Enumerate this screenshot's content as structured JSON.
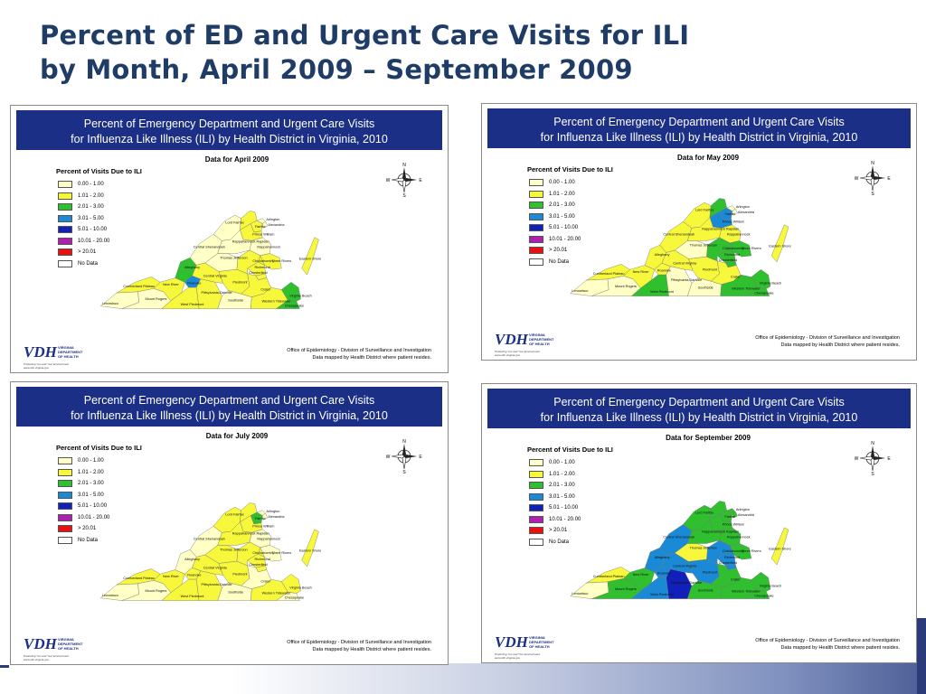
{
  "slide": {
    "title_line1": "Percent of ED and Urgent Care Visits for ILI",
    "title_line2": "by Month, April 2009 – September 2009"
  },
  "legend_levels": [
    {
      "label": "0.00 - 1.00",
      "color": "#ffffc6"
    },
    {
      "label": "1.01 - 2.00",
      "color": "#f7f73c"
    },
    {
      "label": "2.01 - 3.00",
      "color": "#2fbf2f"
    },
    {
      "label": "3.01 - 5.00",
      "color": "#1a8ad6"
    },
    {
      "label": "5.01 - 10.00",
      "color": "#1020b8"
    },
    {
      "label": "10.01 - 20.00",
      "color": "#b020b0"
    },
    {
      "label": "> 20.01",
      "color": "#e81010"
    },
    {
      "label": "No Data",
      "color": "#ffffff"
    }
  ],
  "panels": [
    {
      "header_line1": "Percent of Emergency Department and Urgent Care Visits",
      "header_line2": "for Influenza Like Illness (ILI) by Health District in Virginia, 2010",
      "subtitle": "Data for April 2009",
      "legend_title": "Percent of Visits Due to ILI",
      "compass": {
        "n": "N",
        "s": "S",
        "e": "E",
        "w": "W"
      },
      "credit_line1": "Office of Epidemiology - Division of Surveillance and Investigation",
      "credit_line2": "Data mapped by Health District where patient resides.",
      "logo": {
        "main": "VDH",
        "line1": "VIRGINIA",
        "line2": "DEPARTMENT",
        "line3": "OF HEALTH",
        "tagline": "Protecting You and Your Environment",
        "url": "www.vdh.virginia.gov"
      },
      "districts": {
        "lenowisco": "Lenowisco",
        "cumberland": "Cumberland Plateau",
        "mountrogers": "Mount Rogers",
        "newriver": "New River",
        "alleghany": "Alleghany",
        "roanoke": "Roanoke",
        "westpiedmont": "West Piedmont",
        "pittsylvania": "Pittsylvania-Danville",
        "centralshen": "Central Shenandoah",
        "thomasjeff": "Thomas Jefferson",
        "centralva": "Central Virginia",
        "southside": "Southside",
        "piedmont": "Piedmont",
        "rappahannock": "Rappahannock",
        "rapprapidan": "Rappahannock Rapidan",
        "lordfairfax": "Lord Fairfax",
        "fairfax": "Fairfax",
        "arlington": "Arlington",
        "alexandria": "Alexandria",
        "princewilliam": "Prince William",
        "loudoun": "Loudoun",
        "chesterfield": "Chesterfield",
        "richmond": "Richmond",
        "henrico": "Henrico",
        "chickahominy": "Chickahominy",
        "threerivers": "Three Rivers",
        "crater": "Crater",
        "westtidewater": "Western Tidewater",
        "virginiabeach": "Virginia Beach",
        "chesapeake": "Chesapeake",
        "easternshore": "Eastern Shore"
      },
      "fills": {
        "lenowisco": "#ffffc6",
        "cumberland": "#f7f73c",
        "mountrogers": "#ffffc6",
        "newriver": "#f7f73c",
        "alleghany": "#2fbf2f",
        "roanoke": "#1a8ad6",
        "westpiedmont": "#f7f73c",
        "pittsylvania": "#f7f73c",
        "centralshen": "#ffffc6",
        "thomasjeff": "#ffffc6",
        "centralva": "#f7f73c",
        "southside": "#ffffc6",
        "piedmont": "#f7f73c",
        "rappahannock": "#ffffc6",
        "rapprapidan": "#ffffc6",
        "lordfairfax": "#ffffc6",
        "fairfax": "#f7f73c",
        "arlington": "#ffffc6",
        "loudoun": "#f7f73c",
        "alexandria": "#ffffc6",
        "princewilliam": "#f7f73c",
        "chesterfield": "#f7f73c",
        "richmond": "#f7f73c",
        "henrico": "#f7f73c",
        "chickahominy": "#f7f73c",
        "threerivers": "#f7f73c",
        "crater": "#f7f73c",
        "westtidewater": "#f7f73c",
        "virginiabeach": "#2fbf2f",
        "chesapeake": "#2fbf2f",
        "easternshore": "#f7f73c"
      }
    },
    {
      "header_line1": "Percent of Emergency Department and Urgent Care Visits",
      "header_line2": "for Influenza Like Illness (ILI) by Health District in Virginia, 2010",
      "subtitle": "Data for May 2009",
      "legend_title": "Percent of Visits Due to ILI",
      "compass": {
        "n": "N",
        "s": "S",
        "e": "E",
        "w": "W"
      },
      "credit_line1": "Office of Epidemiology - Division of Surveillance and Investigation",
      "credit_line2": "Data mapped by Health District where patient resides.",
      "logo": {
        "main": "VDH",
        "line1": "VIRGINIA",
        "line2": "DEPARTMENT",
        "line3": "OF HEALTH",
        "tagline": "Protecting You and Your Environment",
        "url": "www.vdh.virginia.gov"
      },
      "districts": {
        "lenowisco": "Lenowisco",
        "cumberland": "Cumberland Plateau",
        "mountrogers": "Mount Rogers",
        "newriver": "New River",
        "alleghany": "Alleghany",
        "roanoke": "Roanoke",
        "westpiedmont": "West Piedmont",
        "pittsylvania": "Pittsylvania-Danville",
        "centralshen": "Central Shenandoah",
        "thomasjeff": "Thomas Jefferson",
        "centralva": "Central Virginia",
        "southside": "Southside",
        "piedmont": "Piedmont",
        "rappahannock": "Rappahannock",
        "rapprapidan": "Rappahannock Rapidan",
        "lordfairfax": "Lord Fairfax",
        "fairfax": "Fairfax",
        "arlington": "Arlington",
        "alexandria": "Alexandria",
        "princewilliam": "Prince William",
        "loudoun": "Loudoun",
        "chesterfield": "Chesterfield",
        "richmond": "Richmond",
        "henrico": "Henrico",
        "chickahominy": "Chickahominy",
        "threerivers": "Three Rivers",
        "crater": "Crater",
        "westtidewater": "Western Tidewater",
        "virginiabeach": "Virginia Beach",
        "chesapeake": "Chesapeake",
        "easternshore": "Eastern Shore"
      },
      "fills": {
        "lenowisco": "#ffffc6",
        "cumberland": "#f7f73c",
        "mountrogers": "#ffffc6",
        "newriver": "#f7f73c",
        "alleghany": "#f7f73c",
        "roanoke": "#f7f73c",
        "westpiedmont": "#2fbf2f",
        "pittsylvania": "#ffffc6",
        "centralshen": "#f7f73c",
        "thomasjeff": "#ffffc6",
        "centralva": "#f7f73c",
        "southside": "#ffffc6",
        "piedmont": "#f7f73c",
        "rappahannock": "#f7f73c",
        "rapprapidan": "#f7f73c",
        "lordfairfax": "#f7f73c",
        "fairfax": "#1a8ad6",
        "arlington": "#ffffc6",
        "loudoun": "#2fbf2f",
        "alexandria": "#ffffc6",
        "princewilliam": "#1a8ad6",
        "chesterfield": "#2fbf2f",
        "richmond": "#2fbf2f",
        "henrico": "#2fbf2f",
        "chickahominy": "#2fbf2f",
        "threerivers": "#2fbf2f",
        "crater": "#f7f73c",
        "westtidewater": "#2fbf2f",
        "virginiabeach": "#2fbf2f",
        "chesapeake": "#2fbf2f",
        "easternshore": "#f7f73c"
      }
    },
    {
      "header_line1": "Percent of Emergency Department and Urgent Care Visits",
      "header_line2": "for Influenza Like Illness (ILI) by Health District in Virginia, 2010",
      "subtitle": "Data for July 2009",
      "legend_title": "Percent of Visits Due to ILI",
      "compass": {
        "n": "N",
        "s": "S",
        "e": "E",
        "w": "W"
      },
      "credit_line1": "Office of Epidemiology - Division of Surveillance and Investigation",
      "credit_line2": "Data mapped by Health District where patient resides.",
      "logo": {
        "main": "VDH",
        "line1": "VIRGINIA",
        "line2": "DEPARTMENT",
        "line3": "OF HEALTH",
        "tagline": "Protecting You and Your Environment",
        "url": "www.vdh.virginia.gov"
      },
      "districts": {
        "lenowisco": "Lenowisco",
        "cumberland": "Cumberland Plateau",
        "mountrogers": "Mount Rogers",
        "newriver": "New River",
        "alleghany": "Alleghany",
        "roanoke": "Roanoke",
        "westpiedmont": "West Piedmont",
        "pittsylvania": "Pittsylvania-Danville",
        "centralshen": "Central Shenandoah",
        "thomasjeff": "Thomas Jefferson",
        "centralva": "Central Virginia",
        "southside": "Southside",
        "piedmont": "Piedmont",
        "rappahannock": "Rappahannock",
        "rapprapidan": "Rappahannock Rapidan",
        "lordfairfax": "Lord Fairfax",
        "fairfax": "Fairfax",
        "arlington": "Arlington",
        "alexandria": "Alexandria",
        "princewilliam": "Prince William",
        "loudoun": "Loudoun",
        "chesterfield": "Chesterfield",
        "richmond": "Richmond",
        "henrico": "Henrico",
        "chickahominy": "Chickahominy",
        "threerivers": "Three Rivers",
        "crater": "Crater",
        "westtidewater": "Western Tidewater",
        "virginiabeach": "Virginia Beach",
        "chesapeake": "Chesapeake",
        "easternshore": "Eastern Shore"
      },
      "fills": {
        "lenowisco": "#ffffc6",
        "cumberland": "#f7f73c",
        "mountrogers": "#ffffc6",
        "newriver": "#f7f73c",
        "alleghany": "#ffffc6",
        "roanoke": "#f7f73c",
        "westpiedmont": "#f7f73c",
        "pittsylvania": "#f7f73c",
        "centralshen": "#ffffc6",
        "thomasjeff": "#f7f73c",
        "centralva": "#f7f73c",
        "southside": "#ffffc6",
        "piedmont": "#f7f73c",
        "rappahannock": "#ffffc6",
        "rapprapidan": "#f7f73c",
        "lordfairfax": "#f7f73c",
        "fairfax": "#2fbf2f",
        "arlington": "#ffffc6",
        "loudoun": "#f7f73c",
        "alexandria": "#ffffc6",
        "princewilliam": "#f7f73c",
        "chesterfield": "#f7f73c",
        "richmond": "#f7f73c",
        "henrico": "#f7f73c",
        "chickahominy": "#f7f73c",
        "threerivers": "#ffffc6",
        "crater": "#ffffc6",
        "westtidewater": "#f7f73c",
        "virginiabeach": "#f7f73c",
        "chesapeake": "#ffffc6",
        "easternshore": "#f7f73c"
      }
    },
    {
      "header_line1": "Percent of Emergency Department and Urgent Care Visits",
      "header_line2": "for Influenza Like Illness (ILI) by Health District in Virginia, 2010",
      "subtitle": "Data for September 2009",
      "legend_title": "Percent of Visits Due to ILI",
      "compass": {
        "n": "N",
        "s": "S",
        "e": "E",
        "w": "W"
      },
      "credit_line1": "Office of Epidemiology - Division of Surveillance and Investigation",
      "credit_line2": "Data mapped by Health District where patient resides.",
      "logo": {
        "main": "VDH",
        "line1": "VIRGINIA",
        "line2": "DEPARTMENT",
        "line3": "OF HEALTH",
        "tagline": "Protecting You and Your Environment",
        "url": "www.vdh.virginia.gov"
      },
      "districts": {
        "lenowisco": "Lenowisco",
        "cumberland": "Cumberland Plateau",
        "mountrogers": "Mount Rogers",
        "newriver": "New River",
        "alleghany": "Alleghany",
        "roanoke": "Roanoke",
        "westpiedmont": "West Piedmont",
        "pittsylvania": "Pittsylvania-Danville",
        "centralshen": "Central Shenandoah",
        "thomasjeff": "Thomas Jefferson",
        "centralva": "Central Virginia",
        "southside": "Southside",
        "piedmont": "Piedmont",
        "rappahannock": "Rappahannock",
        "rapprapidan": "Rappahannock Rapidan",
        "lordfairfax": "Lord Fairfax",
        "fairfax": "Fairfax",
        "arlington": "Arlington",
        "alexandria": "Alexandria",
        "princewilliam": "Prince William",
        "loudoun": "Loudoun",
        "chesterfield": "Chesterfield",
        "richmond": "Richmond",
        "henrico": "Henrico",
        "chickahominy": "Chickahominy",
        "threerivers": "Three Rivers",
        "crater": "Crater",
        "westtidewater": "Western Tidewater",
        "virginiabeach": "Virginia Beach",
        "chesapeake": "Chesapeake",
        "easternshore": "Eastern Shore"
      },
      "fills": {
        "lenowisco": "#ffffc6",
        "cumberland": "#f7f73c",
        "mountrogers": "#2fbf2f",
        "newriver": "#2fbf2f",
        "alleghany": "#1a8ad6",
        "roanoke": "#1a8ad6",
        "westpiedmont": "#1a8ad6",
        "pittsylvania": "#1020b8",
        "centralshen": "#1a8ad6",
        "thomasjeff": "#f7f73c",
        "centralva": "#1a8ad6",
        "southside": "#2fbf2f",
        "piedmont": "#1a8ad6",
        "rappahannock": "#2fbf2f",
        "rapprapidan": "#2fbf2f",
        "lordfairfax": "#2fbf2f",
        "fairfax": "#2fbf2f",
        "arlington": "#2fbf2f",
        "loudoun": "#2fbf2f",
        "alexandria": "#2fbf2f",
        "princewilliam": "#2fbf2f",
        "chesterfield": "#1a8ad6",
        "richmond": "#1a8ad6",
        "henrico": "#1a8ad6",
        "chickahominy": "#1a8ad6",
        "threerivers": "#2fbf2f",
        "crater": "#2fbf2f",
        "westtidewater": "#2fbf2f",
        "virginiabeach": "#2fbf2f",
        "chesapeake": "#2fbf2f",
        "easternshore": "#f7f73c"
      }
    }
  ]
}
